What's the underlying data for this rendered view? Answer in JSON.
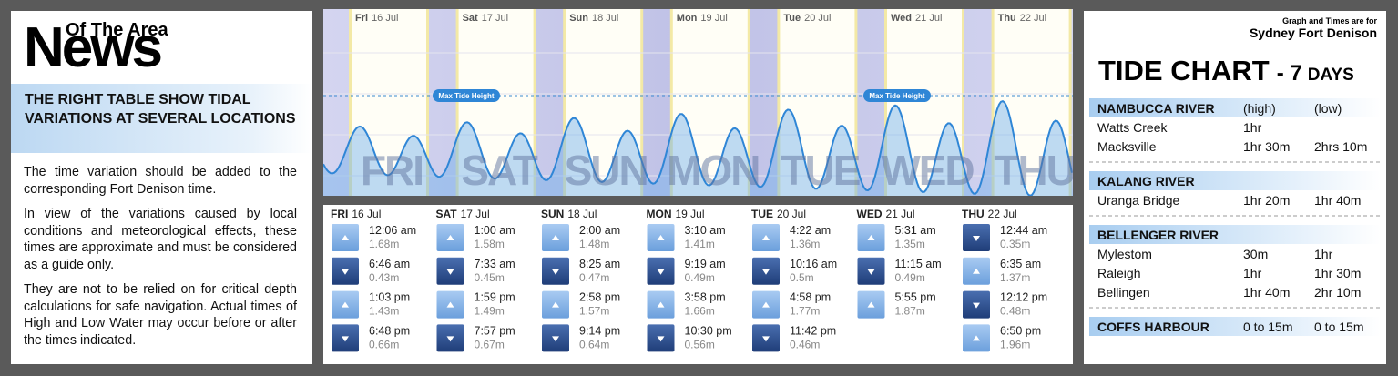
{
  "news": {
    "brand_top": "Of The Area",
    "brand": "News",
    "heading": "THE RIGHT TABLE SHOW TIDAL VARIATIONS AT SEVERAL LOCATIONS",
    "paragraphs": [
      "The time variation should be added to the corresponding Fort Denison time.",
      "In view of the variations caused by local conditions and meteorological effects, these times are approximate and must be considered as a guide only.",
      "They are not to be relied on for critical depth calculations for safe navigation. Actual times of High and Low Water may occur before or after the times indicated."
    ]
  },
  "graph": {
    "max_label": "Max Tide Height",
    "days": [
      {
        "day": "Fri",
        "date": "16 Jul",
        "big": "FRI"
      },
      {
        "day": "Sat",
        "date": "17 Jul",
        "big": "SAT"
      },
      {
        "day": "Sun",
        "date": "18 Jul",
        "big": "SUN"
      },
      {
        "day": "Mon",
        "date": "19 Jul",
        "big": "MON"
      },
      {
        "day": "Tue",
        "date": "20 Jul",
        "big": "TUE"
      },
      {
        "day": "Wed",
        "date": "21 Jul",
        "big": "WED"
      },
      {
        "day": "Thu",
        "date": "22 Jul",
        "big": "THU"
      }
    ]
  },
  "tides": [
    {
      "day": "FRI",
      "date": "16 Jul",
      "entries": [
        {
          "time": "12:06 am",
          "height": "1.68m",
          "kind": "high"
        },
        {
          "time": "6:46 am",
          "height": "0.43m",
          "kind": "low"
        },
        {
          "time": "1:03 pm",
          "height": "1.43m",
          "kind": "high"
        },
        {
          "time": "6:48 pm",
          "height": "0.66m",
          "kind": "low"
        }
      ]
    },
    {
      "day": "SAT",
      "date": "17 Jul",
      "entries": [
        {
          "time": "1:00 am",
          "height": "1.58m",
          "kind": "high"
        },
        {
          "time": "7:33 am",
          "height": "0.45m",
          "kind": "low"
        },
        {
          "time": "1:59 pm",
          "height": "1.49m",
          "kind": "high"
        },
        {
          "time": "7:57 pm",
          "height": "0.67m",
          "kind": "low"
        }
      ]
    },
    {
      "day": "SUN",
      "date": "18 Jul",
      "entries": [
        {
          "time": "2:00 am",
          "height": "1.48m",
          "kind": "high"
        },
        {
          "time": "8:25 am",
          "height": "0.47m",
          "kind": "low"
        },
        {
          "time": "2:58 pm",
          "height": "1.57m",
          "kind": "high"
        },
        {
          "time": "9:14 pm",
          "height": "0.64m",
          "kind": "low"
        }
      ]
    },
    {
      "day": "MON",
      "date": "19 Jul",
      "entries": [
        {
          "time": "3:10 am",
          "height": "1.41m",
          "kind": "high"
        },
        {
          "time": "9:19 am",
          "height": "0.49m",
          "kind": "low"
        },
        {
          "time": "3:58 pm",
          "height": "1.66m",
          "kind": "high"
        },
        {
          "time": "10:30 pm",
          "height": "0.56m",
          "kind": "low"
        }
      ]
    },
    {
      "day": "TUE",
      "date": "20 Jul",
      "entries": [
        {
          "time": "4:22 am",
          "height": "1.36m",
          "kind": "high"
        },
        {
          "time": "10:16 am",
          "height": "0.5m",
          "kind": "low"
        },
        {
          "time": "4:58 pm",
          "height": "1.77m",
          "kind": "high"
        },
        {
          "time": "11:42 pm",
          "height": "0.46m",
          "kind": "low"
        }
      ]
    },
    {
      "day": "WED",
      "date": "21 Jul",
      "entries": [
        {
          "time": "5:31 am",
          "height": "1.35m",
          "kind": "high"
        },
        {
          "time": "11:15 am",
          "height": "0.49m",
          "kind": "low"
        },
        {
          "time": "5:55 pm",
          "height": "1.87m",
          "kind": "high"
        }
      ]
    },
    {
      "day": "THU",
      "date": "22 Jul",
      "entries": [
        {
          "time": "12:44 am",
          "height": "0.35m",
          "kind": "low"
        },
        {
          "time": "6:35 am",
          "height": "1.37m",
          "kind": "high"
        },
        {
          "time": "12:12 pm",
          "height": "0.48m",
          "kind": "low"
        },
        {
          "time": "6:50 pm",
          "height": "1.96m",
          "kind": "high"
        }
      ]
    }
  ],
  "right": {
    "note": "Graph and Times are for",
    "place": "Sydney Fort Denison",
    "title": "TIDE CHART",
    "dash_num": "- 7",
    "days_word": "DAYS",
    "sections": [
      {
        "header": [
          "NAMBUCCA RIVER",
          "(high)",
          "(low)"
        ],
        "rows": [
          [
            "Watts Creek",
            "1hr"
          ],
          [
            "Macksville",
            "1hr 30m",
            "2hrs 10m"
          ]
        ]
      },
      {
        "header": [
          "KALANG RIVER"
        ],
        "rows": [
          [
            "Uranga Bridge",
            "1hr 20m",
            "1hr 40m"
          ]
        ]
      },
      {
        "header": [
          "BELLENGER RIVER"
        ],
        "rows": [
          [
            "Mylestom",
            "30m",
            "1hr"
          ],
          [
            "Raleigh",
            "1hr",
            "1hr 30m"
          ],
          [
            "Bellingen",
            "1hr 40m",
            "2hr 10m"
          ]
        ]
      },
      {
        "header": [
          "COFFS HARBOUR",
          "0 to 15m",
          "0 to 15m"
        ],
        "rows": []
      }
    ]
  }
}
